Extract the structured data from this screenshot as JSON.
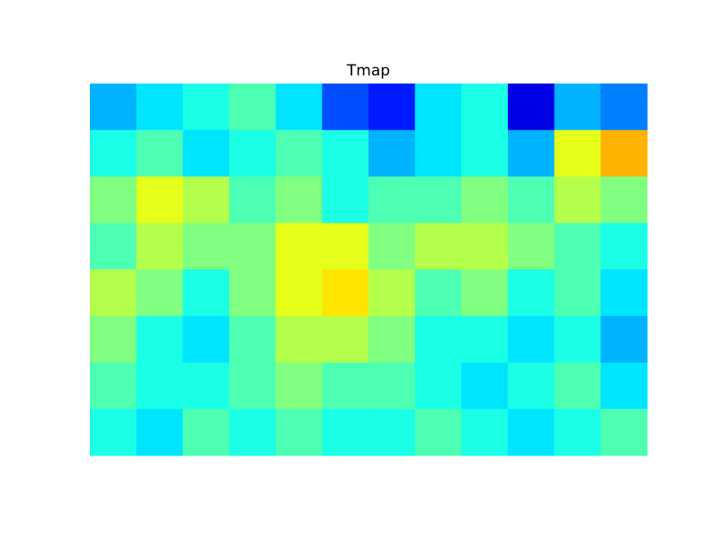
{
  "chart_data": {
    "type": "heatmap",
    "title": "Tmap",
    "colormap": "jet",
    "zlim": [
      0,
      1
    ],
    "z": [
      [
        0.3,
        0.35,
        0.4,
        0.45,
        0.35,
        0.2,
        0.15,
        0.35,
        0.4,
        0.1,
        0.3,
        0.25
      ],
      [
        0.4,
        0.45,
        0.35,
        0.4,
        0.45,
        0.4,
        0.3,
        0.35,
        0.4,
        0.3,
        0.6,
        0.7
      ],
      [
        0.5,
        0.6,
        0.55,
        0.45,
        0.5,
        0.4,
        0.45,
        0.45,
        0.5,
        0.45,
        0.55,
        0.5
      ],
      [
        0.45,
        0.55,
        0.5,
        0.5,
        0.6,
        0.6,
        0.5,
        0.55,
        0.55,
        0.5,
        0.45,
        0.4
      ],
      [
        0.55,
        0.5,
        0.4,
        0.5,
        0.6,
        0.65,
        0.55,
        0.45,
        0.5,
        0.4,
        0.45,
        0.35
      ],
      [
        0.5,
        0.4,
        0.35,
        0.45,
        0.55,
        0.55,
        0.5,
        0.4,
        0.4,
        0.35,
        0.4,
        0.3
      ],
      [
        0.45,
        0.4,
        0.4,
        0.45,
        0.5,
        0.45,
        0.45,
        0.4,
        0.35,
        0.4,
        0.45,
        0.35
      ],
      [
        0.4,
        0.35,
        0.45,
        0.4,
        0.45,
        0.4,
        0.4,
        0.45,
        0.4,
        0.35,
        0.4,
        0.45
      ]
    ]
  }
}
